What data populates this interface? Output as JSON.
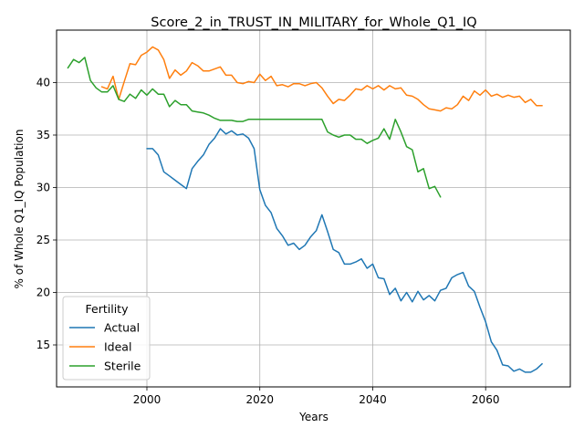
{
  "chart_data": {
    "type": "line",
    "title": "Score_2_in_TRUST_IN_MILITARY_for_Whole_Q1_IQ",
    "xlabel": "Years",
    "ylabel": "% of Whole Q1_IQ Population",
    "xlim": [
      1984,
      2075
    ],
    "ylim": [
      11.0,
      45.0
    ],
    "xticks": [
      2000,
      2020,
      2040,
      2060
    ],
    "yticks": [
      15,
      20,
      25,
      30,
      35,
      40
    ],
    "grid": true,
    "legend": {
      "title": "Fertility",
      "position": "lower-left"
    },
    "series": [
      {
        "name": "Actual",
        "color": "#1f77b4",
        "x": [
          2000,
          2001,
          2002,
          2003,
          2004,
          2005,
          2006,
          2007,
          2008,
          2009,
          2010,
          2011,
          2012,
          2013,
          2014,
          2015,
          2016,
          2017,
          2018,
          2019,
          2020,
          2021,
          2022,
          2023,
          2024,
          2025,
          2026,
          2027,
          2028,
          2029,
          2030,
          2031,
          2032,
          2033,
          2034,
          2035,
          2036,
          2037,
          2038,
          2039,
          2040,
          2041,
          2042,
          2043,
          2044,
          2045,
          2046,
          2047,
          2048,
          2049,
          2050,
          2051,
          2052,
          2053,
          2054,
          2055,
          2056,
          2057,
          2058,
          2059,
          2060,
          2061,
          2062,
          2063,
          2064,
          2065,
          2066,
          2067,
          2068,
          2069,
          2070
        ],
        "y": [
          33.7,
          33.7,
          33.1,
          31.5,
          31.1,
          30.7,
          30.3,
          29.9,
          31.8,
          32.5,
          33.1,
          34.1,
          34.7,
          35.6,
          35.1,
          35.4,
          35.0,
          35.1,
          34.7,
          33.7,
          29.8,
          28.3,
          27.6,
          26.1,
          25.4,
          24.5,
          24.7,
          24.1,
          24.5,
          25.3,
          25.9,
          27.4,
          25.8,
          24.1,
          23.8,
          22.7,
          22.7,
          22.9,
          23.2,
          22.3,
          22.7,
          21.4,
          21.3,
          19.8,
          20.4,
          19.2,
          20.0,
          19.1,
          20.1,
          19.3,
          19.7,
          19.2,
          20.2,
          20.4,
          21.4,
          21.7,
          21.9,
          20.6,
          20.1,
          18.6,
          17.2,
          15.3,
          14.5,
          13.1,
          13.0,
          12.5,
          12.7,
          12.4,
          12.4,
          12.7,
          13.2
        ]
      },
      {
        "name": "Ideal",
        "color": "#ff7f0e",
        "x": [
          1992,
          1993,
          1994,
          1995,
          1996,
          1997,
          1998,
          1999,
          2000,
          2001,
          2002,
          2003,
          2004,
          2005,
          2006,
          2007,
          2008,
          2009,
          2010,
          2011,
          2012,
          2013,
          2014,
          2015,
          2016,
          2017,
          2018,
          2019,
          2020,
          2021,
          2022,
          2023,
          2024,
          2025,
          2026,
          2027,
          2028,
          2029,
          2030,
          2031,
          2032,
          2033,
          2034,
          2035,
          2036,
          2037,
          2038,
          2039,
          2040,
          2041,
          2042,
          2043,
          2044,
          2045,
          2046,
          2047,
          2048,
          2049,
          2050,
          2051,
          2052,
          2053,
          2054,
          2055,
          2056,
          2057,
          2058,
          2059,
          2060,
          2061,
          2062,
          2063,
          2064,
          2065,
          2066,
          2067,
          2068,
          2069,
          2070
        ],
        "y": [
          39.6,
          39.4,
          40.6,
          38.4,
          40.1,
          41.8,
          41.7,
          42.6,
          42.9,
          43.4,
          43.1,
          42.2,
          40.4,
          41.2,
          40.7,
          41.1,
          41.9,
          41.6,
          41.1,
          41.1,
          41.3,
          41.5,
          40.7,
          40.7,
          40.0,
          39.9,
          40.1,
          40.0,
          40.8,
          40.2,
          40.6,
          39.7,
          39.8,
          39.6,
          39.9,
          39.9,
          39.7,
          39.9,
          40.0,
          39.5,
          38.7,
          38.0,
          38.4,
          38.3,
          38.8,
          39.4,
          39.3,
          39.7,
          39.4,
          39.7,
          39.3,
          39.7,
          39.4,
          39.5,
          38.8,
          38.7,
          38.4,
          37.9,
          37.5,
          37.4,
          37.3,
          37.6,
          37.5,
          37.9,
          38.7,
          38.3,
          39.2,
          38.8,
          39.3,
          38.7,
          38.9,
          38.6,
          38.8,
          38.6,
          38.7,
          38.1,
          38.4,
          37.8,
          37.8
        ]
      },
      {
        "name": "Sterile",
        "color": "#2ca02c",
        "x": [
          1986,
          1987,
          1988,
          1989,
          1990,
          1991,
          1992,
          1993,
          1994,
          1995,
          1996,
          1997,
          1998,
          1999,
          2000,
          2001,
          2002,
          2003,
          2004,
          2005,
          2006,
          2007,
          2008,
          2009,
          2010,
          2011,
          2012,
          2013,
          2014,
          2015,
          2016,
          2017,
          2018,
          2019,
          2020,
          2021,
          2022,
          2023,
          2024,
          2025,
          2026,
          2027,
          2028,
          2029,
          2030,
          2031,
          2032,
          2033,
          2034,
          2035,
          2036,
          2037,
          2038,
          2039,
          2040,
          2041,
          2042,
          2043,
          2044,
          2045,
          2046,
          2047,
          2048,
          2049,
          2050,
          2051,
          2052
        ],
        "y": [
          41.4,
          42.2,
          41.9,
          42.4,
          40.2,
          39.5,
          39.1,
          39.1,
          39.7,
          38.4,
          38.2,
          38.9,
          38.5,
          39.3,
          38.8,
          39.4,
          38.9,
          38.9,
          37.7,
          38.3,
          37.9,
          37.9,
          37.3,
          37.2,
          37.1,
          36.9,
          36.6,
          36.4,
          36.4,
          36.4,
          36.3,
          36.3,
          36.5,
          36.5,
          36.5,
          36.5,
          36.5,
          36.5,
          36.5,
          36.5,
          36.5,
          36.5,
          36.5,
          36.5,
          36.5,
          36.5,
          35.3,
          35.0,
          34.8,
          35.0,
          35.0,
          34.6,
          34.6,
          34.2,
          34.5,
          34.7,
          35.6,
          34.6,
          36.5,
          35.3,
          33.9,
          33.6,
          31.5,
          31.8,
          29.9,
          30.1,
          29.1
        ]
      }
    ]
  }
}
